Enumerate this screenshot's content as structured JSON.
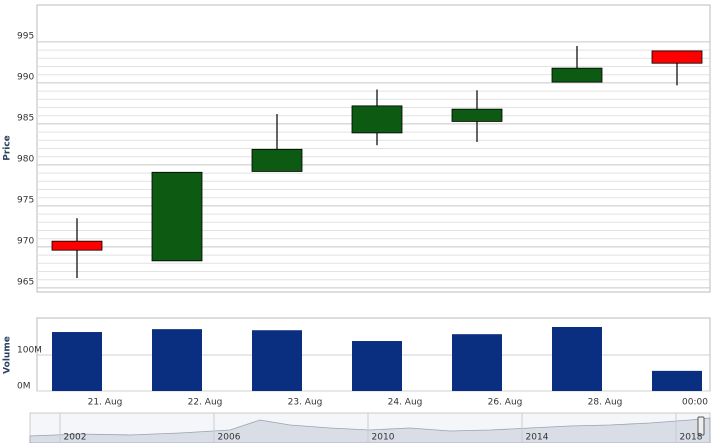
{
  "chart_data": [
    {
      "type": "candlestick",
      "y_label": "Price",
      "categories": [
        "21. Aug",
        "22. Aug",
        "23. Aug",
        "24. Aug",
        "26. Aug",
        "28. Aug",
        "00:00"
      ],
      "open": [
        970.7,
        968.3,
        979.2,
        983.9,
        985.3,
        990.1,
        993.9
      ],
      "high": [
        973.5,
        979.1,
        986.2,
        989.2,
        989.1,
        994.5,
        993.9
      ],
      "low": [
        966.2,
        968.3,
        979.2,
        982.4,
        982.8,
        990.1,
        989.7
      ],
      "close": [
        969.6,
        979.1,
        981.9,
        987.2,
        986.8,
        991.8,
        992.4
      ],
      "up_color": "#0d5a12",
      "down_color": "#ff0000",
      "ylim": [
        964.5,
        999.5
      ],
      "yticks": [
        965,
        970,
        975,
        980,
        985,
        990,
        995
      ],
      "grid": true
    },
    {
      "type": "bar",
      "y_label": "Volume",
      "values": [
        164,
        172,
        169,
        139,
        158,
        178,
        56
      ],
      "color": "#0a2f80",
      "ylim": [
        0,
        203
      ],
      "yticks": [
        {
          "value": 0,
          "label": "0M"
        },
        {
          "value": 100,
          "label": "100M"
        }
      ],
      "grid": true
    },
    {
      "type": "navigator",
      "labels": [
        "2002",
        "2006",
        "2010",
        "2014",
        "2018"
      ]
    }
  ]
}
